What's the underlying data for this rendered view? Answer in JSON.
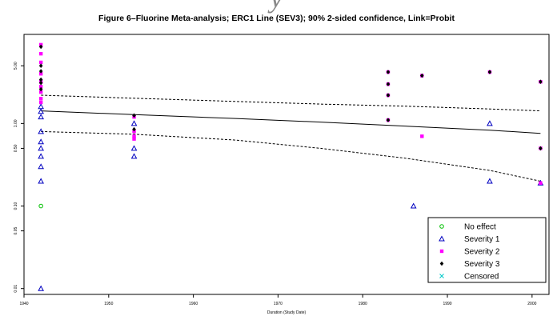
{
  "header_fragment": "y",
  "chart_data": {
    "type": "scatter",
    "title": "Figure 6–Fluorine Meta-analysis; ERC1 Line (SEV3); 90% 2-sided confidence, Link=Probit",
    "xlabel": "Duration (Study Date)",
    "ylabel": "",
    "x_scale": "linear",
    "y_scale": "log",
    "xlim": [
      1940,
      2002
    ],
    "ylim": [
      0.0085,
      12
    ],
    "x_ticks": [
      "1940",
      "1950",
      "1960",
      "1970",
      "1980",
      "1990",
      "2000"
    ],
    "x_tick_values": [
      1940,
      1950,
      1960,
      1970,
      1980,
      1990,
      2000
    ],
    "y_ticks": [
      "0.01",
      "0.05",
      "0.10",
      "0.50",
      "1.00",
      "5.00"
    ],
    "y_tick_values": [
      0.01,
      0.05,
      0.1,
      0.5,
      1.0,
      5.0
    ],
    "grid": false,
    "legend_position": "bottom-right",
    "legend": [
      {
        "label": "No effect",
        "marker": "circle",
        "color": "#00c000"
      },
      {
        "label": "Severity 1",
        "marker": "triangle",
        "color": "#0000c0"
      },
      {
        "label": "Severity 2",
        "marker": "square",
        "color": "#ff00ff"
      },
      {
        "label": "Severity 3",
        "marker": "diamond",
        "color": "#000000"
      },
      {
        "label": "Censored",
        "marker": "x",
        "color": "#00c8c8"
      }
    ],
    "series": [
      {
        "category": "No effect",
        "points": [
          [
            1942,
            0.1
          ]
        ]
      },
      {
        "category": "Severity 1",
        "points": [
          [
            1942,
            0.01
          ],
          [
            1942,
            0.2
          ],
          [
            1942,
            0.3
          ],
          [
            1942,
            0.4
          ],
          [
            1942,
            0.5
          ],
          [
            1942,
            0.6
          ],
          [
            1942,
            0.8
          ],
          [
            1942,
            1.2
          ],
          [
            1942,
            1.4
          ],
          [
            1942,
            1.6
          ],
          [
            1953,
            0.4
          ],
          [
            1953,
            0.5
          ],
          [
            1953,
            1.0
          ],
          [
            1986,
            0.1
          ],
          [
            1995,
            0.2
          ],
          [
            1995,
            1.0
          ],
          [
            2001,
            0.19
          ]
        ]
      },
      {
        "category": "Severity 2",
        "points": [
          [
            1942,
            1.8
          ],
          [
            1942,
            2.0
          ],
          [
            1942,
            2.4
          ],
          [
            1942,
            2.8
          ],
          [
            1942,
            3.2
          ],
          [
            1942,
            4.0
          ],
          [
            1942,
            5.5
          ],
          [
            1942,
            7.0
          ],
          [
            1942,
            9.0
          ],
          [
            1953,
            0.65
          ],
          [
            1953,
            0.7
          ],
          [
            1953,
            0.8
          ],
          [
            1953,
            1.2
          ],
          [
            1983,
            1.1
          ],
          [
            1983,
            2.2
          ],
          [
            1983,
            3.0
          ],
          [
            1983,
            4.2
          ],
          [
            1987,
            0.7
          ],
          [
            1987,
            3.8
          ],
          [
            1995,
            4.2
          ],
          [
            2001,
            0.19
          ],
          [
            2001,
            0.5
          ],
          [
            2001,
            3.2
          ]
        ]
      },
      {
        "category": "Severity 3",
        "points": [
          [
            1942,
            2.6
          ],
          [
            1942,
            3.1
          ],
          [
            1942,
            3.4
          ],
          [
            1942,
            4.3
          ],
          [
            1942,
            5.0
          ],
          [
            1942,
            8.5
          ],
          [
            1953,
            0.85
          ],
          [
            1953,
            1.25
          ],
          [
            1983,
            1.1
          ],
          [
            1983,
            2.2
          ],
          [
            1983,
            3.0
          ],
          [
            1983,
            4.2
          ],
          [
            1987,
            3.8
          ],
          [
            1995,
            4.2
          ],
          [
            2001,
            0.5
          ],
          [
            2001,
            3.2
          ]
        ]
      },
      {
        "category": "Censored",
        "points": []
      }
    ],
    "lines": [
      {
        "name": "fit",
        "style": "solid",
        "points": [
          [
            1942,
            1.42
          ],
          [
            1953,
            1.28
          ],
          [
            1965,
            1.15
          ],
          [
            1975,
            1.04
          ],
          [
            1985,
            0.93
          ],
          [
            1995,
            0.83
          ],
          [
            2001,
            0.76
          ]
        ]
      },
      {
        "name": "upper",
        "style": "dashed",
        "points": [
          [
            1942,
            2.2
          ],
          [
            1953,
            2.02
          ],
          [
            1965,
            1.85
          ],
          [
            1975,
            1.72
          ],
          [
            1985,
            1.62
          ],
          [
            1995,
            1.5
          ],
          [
            2001,
            1.42
          ]
        ]
      },
      {
        "name": "lower",
        "style": "dashed",
        "points": [
          [
            1942,
            0.8
          ],
          [
            1953,
            0.74
          ],
          [
            1965,
            0.63
          ],
          [
            1975,
            0.5
          ],
          [
            1985,
            0.38
          ],
          [
            1995,
            0.27
          ],
          [
            2001,
            0.2
          ]
        ]
      }
    ]
  }
}
